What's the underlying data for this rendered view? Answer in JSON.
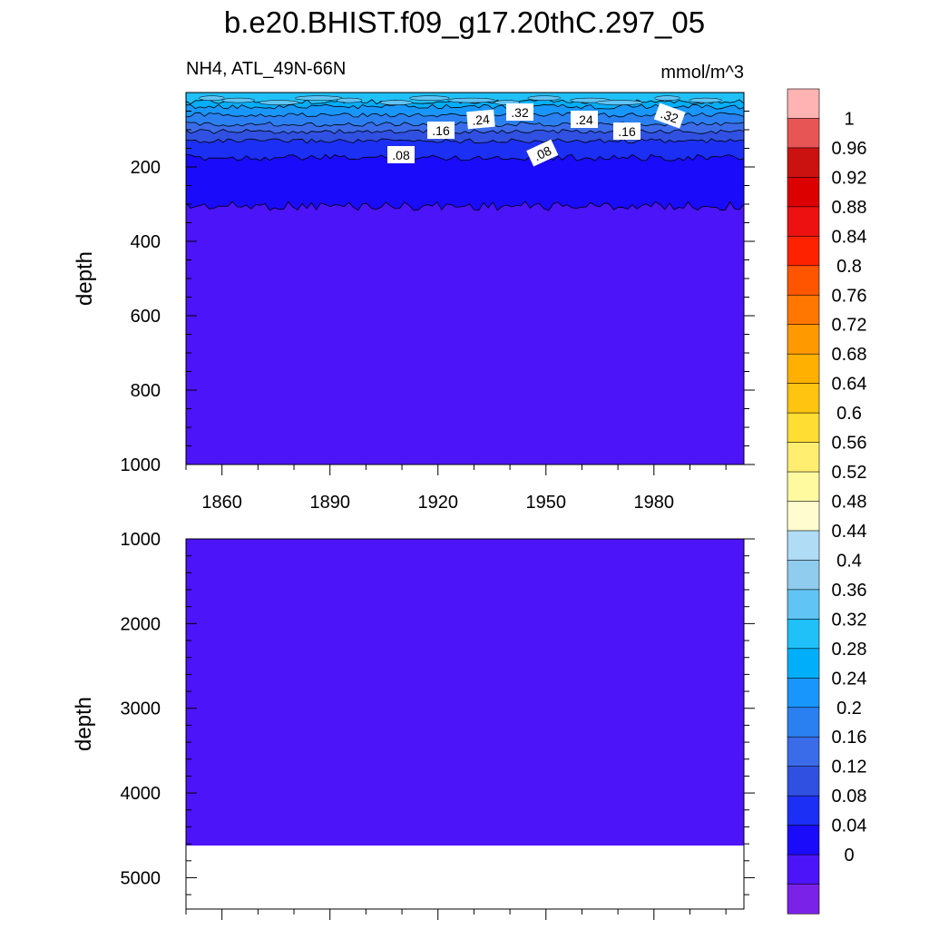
{
  "title": "b.e20.BHIST.f09_g17.20thC.297_05",
  "chart_data": [
    {
      "type": "heatmap",
      "panel": "upper",
      "subtitle_left": "NH4, ATL_49N-66N",
      "subtitle_right": "mmol/m^3",
      "ylabel": "depth",
      "y_reversed": true,
      "ylim": [
        0,
        1000
      ],
      "y_ticks": [
        "200",
        "400",
        "600",
        "800",
        "1000"
      ],
      "xlim": [
        1850,
        2005
      ],
      "x_ticks": [
        "1860",
        "1890",
        "1920",
        "1950",
        "1980"
      ],
      "contour_labels": [
        ".32",
        ".24",
        ".16",
        ".08",
        ".32",
        ".24",
        ".16",
        ".08"
      ],
      "contour_depths": [
        {
          "level": 0.32,
          "depth": 25
        },
        {
          "level": 0.28,
          "depth": 38
        },
        {
          "level": 0.24,
          "depth": 60
        },
        {
          "level": 0.2,
          "depth": 85
        },
        {
          "level": 0.16,
          "depth": 105
        },
        {
          "level": 0.12,
          "depth": 130
        },
        {
          "level": 0.08,
          "depth": 175
        },
        {
          "level": 0.04,
          "depth": 305
        }
      ]
    },
    {
      "type": "heatmap",
      "panel": "lower",
      "ylabel": "depth",
      "y_reversed": true,
      "ylim": [
        1000,
        5370
      ],
      "y_ticks": [
        "1000",
        "2000",
        "3000",
        "4000",
        "5000"
      ],
      "xlim": [
        1850,
        2005
      ],
      "filled_value": "0-0.04",
      "data_max_depth": 4600
    }
  ],
  "colorbar": {
    "labels": [
      "1",
      "0.96",
      "0.92",
      "0.88",
      "0.84",
      "0.8",
      "0.76",
      "0.72",
      "0.68",
      "0.64",
      "0.6",
      "0.56",
      "0.52",
      "0.48",
      "0.44",
      "0.4",
      "0.36",
      "0.32",
      "0.28",
      "0.24",
      "0.2",
      "0.16",
      "0.12",
      "0.08",
      "0.04",
      "0"
    ],
    "colors": [
      "#ffb3b3",
      "#e85555",
      "#cc1111",
      "#dd0000",
      "#ee1111",
      "#ff2200",
      "#ff5500",
      "#ff7700",
      "#ff9900",
      "#ffb000",
      "#ffc410",
      "#ffdd33",
      "#ffee70",
      "#fff9a0",
      "#fffdd0",
      "#b0dcf5",
      "#90ccee",
      "#60c4f4",
      "#20c0f8",
      "#00aefa",
      "#1896fb",
      "#2a80f0",
      "#3a6cea",
      "#3050e2",
      "#1c2ff5",
      "#1a0bfa",
      "#4c14f8",
      "#7b22e8"
    ]
  }
}
